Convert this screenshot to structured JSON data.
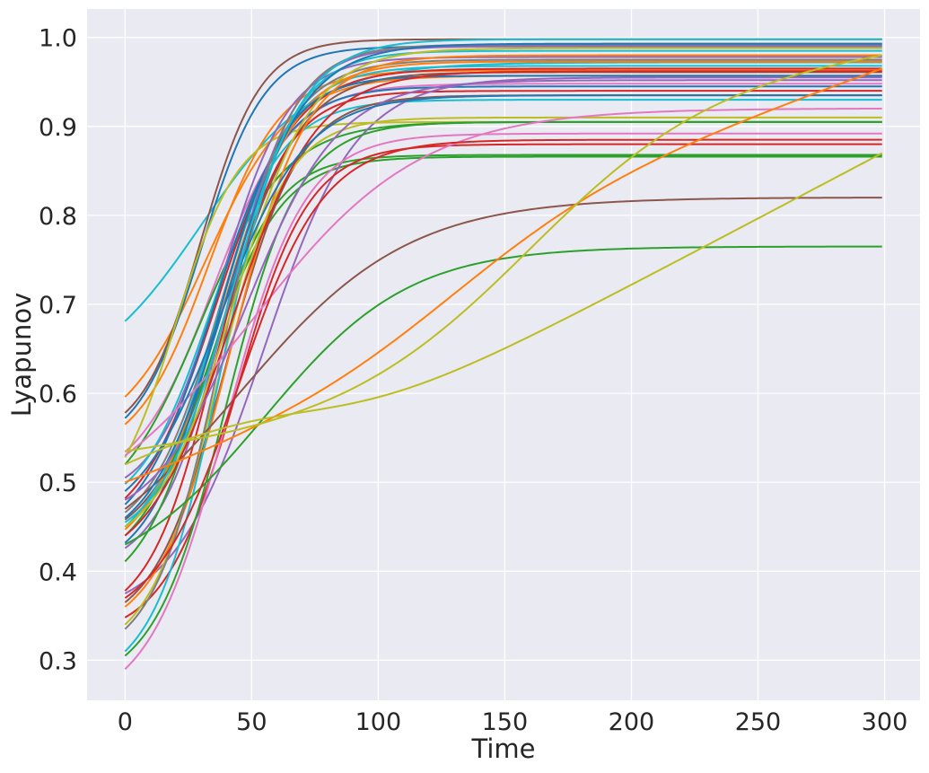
{
  "chart_data": {
    "type": "line",
    "title": "",
    "xlabel": "Time",
    "ylabel": "Lyapunov",
    "xlim": [
      -15,
      314
    ],
    "ylim": [
      0.255,
      1.032
    ],
    "xticks": [
      0,
      50,
      100,
      150,
      200,
      250,
      300
    ],
    "yticks": [
      0.3,
      0.4,
      0.5,
      0.6,
      0.7,
      0.8,
      0.9,
      1.0
    ],
    "x_range": [
      0,
      299
    ],
    "grid": true,
    "background": "#eaeaf2",
    "palette": [
      "#1f77b4",
      "#ff7f0e",
      "#2ca02c",
      "#d62728",
      "#9467bd",
      "#8c564b",
      "#e377c2",
      "#7f7f7f",
      "#bcbd22",
      "#17becf"
    ],
    "series": [
      {
        "color": "#17becf",
        "y0": 0.681,
        "yend": 0.972,
        "k": 0.045,
        "t0": 30
      },
      {
        "color": "#ff7f0e",
        "y0": 0.596,
        "yend": 0.957,
        "k": 0.06,
        "t0": 32
      },
      {
        "color": "#8c564b",
        "y0": 0.578,
        "yend": 0.998,
        "k": 0.085,
        "t0": 30
      },
      {
        "color": "#1f77b4",
        "y0": 0.572,
        "yend": 0.99,
        "k": 0.08,
        "t0": 30
      },
      {
        "color": "#ff7f0e",
        "y0": 0.565,
        "yend": 0.963,
        "k": 0.07,
        "t0": 33
      },
      {
        "color": "#e377c2",
        "y0": 0.534,
        "yend": 0.948,
        "k": 0.065,
        "t0": 35
      },
      {
        "color": "#bcbd22",
        "y0": 0.528,
        "yend": 0.905,
        "k": 0.08,
        "t0": 20
      },
      {
        "color": "#2ca02c",
        "y0": 0.52,
        "yend": 0.905,
        "k": 0.06,
        "t0": 30
      },
      {
        "color": "#9467bd",
        "y0": 0.505,
        "yend": 0.978,
        "k": 0.075,
        "t0": 38
      },
      {
        "color": "#17becf",
        "y0": 0.498,
        "yend": 0.93,
        "k": 0.07,
        "t0": 34
      },
      {
        "color": "#d62728",
        "y0": 0.482,
        "yend": 0.965,
        "k": 0.065,
        "t0": 36
      },
      {
        "color": "#1f77b4",
        "y0": 0.475,
        "yend": 0.945,
        "k": 0.07,
        "t0": 34
      },
      {
        "color": "#7f7f7f",
        "y0": 0.466,
        "yend": 0.975,
        "k": 0.07,
        "t0": 38
      },
      {
        "color": "#8c564b",
        "y0": 0.458,
        "yend": 0.961,
        "k": 0.068,
        "t0": 40
      },
      {
        "color": "#17becf",
        "y0": 0.45,
        "yend": 0.968,
        "k": 0.07,
        "t0": 37
      },
      {
        "color": "#ff7f0e",
        "y0": 0.447,
        "yend": 0.973,
        "k": 0.068,
        "t0": 38
      },
      {
        "color": "#2ca02c",
        "y0": 0.44,
        "yend": 0.866,
        "k": 0.07,
        "t0": 33
      },
      {
        "color": "#1f77b4",
        "y0": 0.432,
        "yend": 0.957,
        "k": 0.075,
        "t0": 36
      },
      {
        "color": "#9467bd",
        "y0": 0.426,
        "yend": 0.99,
        "k": 0.075,
        "t0": 40
      },
      {
        "color": "#2ca02c",
        "y0": 0.411,
        "yend": 0.868,
        "k": 0.075,
        "t0": 32
      },
      {
        "color": "#d62728",
        "y0": 0.378,
        "yend": 0.94,
        "k": 0.075,
        "t0": 36
      },
      {
        "color": "#9467bd",
        "y0": 0.375,
        "yend": 0.955,
        "k": 0.055,
        "t0": 55
      },
      {
        "color": "#8c564b",
        "y0": 0.365,
        "yend": 0.935,
        "k": 0.07,
        "t0": 40
      },
      {
        "color": "#ff7f0e",
        "y0": 0.36,
        "yend": 0.98,
        "k": 0.068,
        "t0": 42
      },
      {
        "color": "#d62728",
        "y0": 0.348,
        "yend": 0.88,
        "k": 0.07,
        "t0": 44
      },
      {
        "color": "#bcbd22",
        "y0": 0.34,
        "yend": 0.91,
        "k": 0.075,
        "t0": 36
      },
      {
        "color": "#7f7f7f",
        "y0": 0.335,
        "yend": 0.992,
        "k": 0.075,
        "t0": 38
      },
      {
        "color": "#17becf",
        "y0": 0.31,
        "yend": 0.985,
        "k": 0.075,
        "t0": 38
      },
      {
        "color": "#2ca02c",
        "y0": 0.305,
        "yend": 0.905,
        "k": 0.07,
        "t0": 40
      },
      {
        "color": "#e377c2",
        "y0": 0.29,
        "yend": 0.892,
        "k": 0.065,
        "t0": 40
      },
      {
        "color": "#8c564b",
        "y0": 0.47,
        "yend": 0.82,
        "k": 0.03,
        "t0": 45
      },
      {
        "color": "#2ca02c",
        "y0": 0.43,
        "yend": 0.765,
        "k": 0.035,
        "t0": 55
      },
      {
        "color": "#1f77b4",
        "y0": 0.46,
        "yend": 0.993,
        "k": 0.065,
        "t0": 40
      },
      {
        "color": "#d62728",
        "y0": 0.44,
        "yend": 0.962,
        "k": 0.06,
        "t0": 42
      },
      {
        "color": "#e377c2",
        "y0": 0.53,
        "yend": 0.92,
        "k": 0.03,
        "t0": 50
      },
      {
        "color": "#9467bd",
        "y0": 0.48,
        "yend": 0.952,
        "k": 0.055,
        "t0": 48
      },
      {
        "color": "#bcbd22",
        "y0": 0.45,
        "yend": 0.988,
        "k": 0.065,
        "t0": 43
      },
      {
        "color": "#1f77b4",
        "y0": 0.49,
        "yend": 0.935,
        "k": 0.06,
        "t0": 38
      },
      {
        "color": "#d62728",
        "y0": 0.37,
        "yend": 0.885,
        "k": 0.06,
        "t0": 45
      },
      {
        "color": "#17becf",
        "y0": 0.455,
        "yend": 0.998,
        "k": 0.07,
        "t0": 42
      },
      {
        "color": "#ff7f0e",
        "y0": 0.5,
        "yend": 0.965,
        "k": 0.03,
        "t0": 130,
        "b": 0.68,
        "m": 0.001
      },
      {
        "color": "#bcbd22",
        "y0": 0.535,
        "yend": 0.98,
        "k": 0.027,
        "t0": 160,
        "b": 0.7,
        "m": 0.0003
      },
      {
        "color": "#bcbd22",
        "y0": 0.52,
        "yend": 0.87,
        "k": 0.04,
        "t0": 70,
        "b": 0.63,
        "m": 0.0015
      }
    ]
  }
}
